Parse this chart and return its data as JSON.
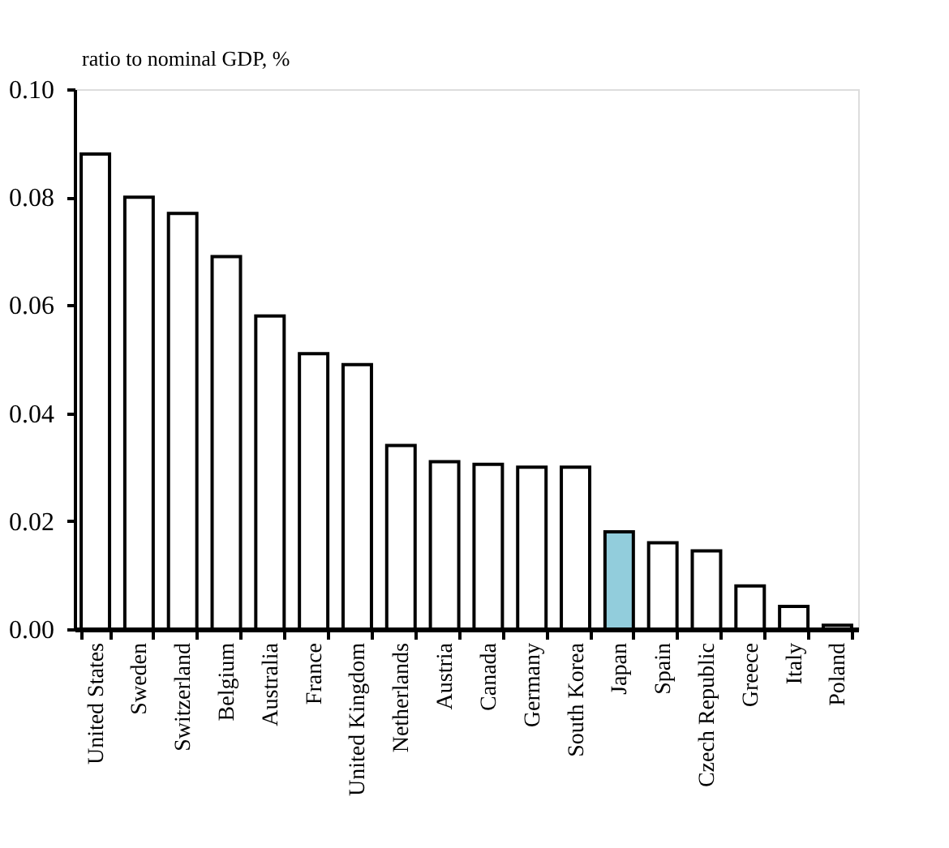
{
  "chart_data": {
    "type": "bar",
    "ylabel": "ratio to nominal GDP, %",
    "categories": [
      "United States",
      "Sweden",
      "Switzerland",
      "Belgium",
      "Australia",
      "France",
      "United Kingdom",
      "Netherlands",
      "Austria",
      "Canada",
      "Germany",
      "South Korea",
      "Japan",
      "Spain",
      "Czech Republic",
      "Greece",
      "Italy",
      "Poland"
    ],
    "values": [
      0.088,
      0.08,
      0.077,
      0.069,
      0.058,
      0.051,
      0.049,
      0.034,
      0.031,
      0.0305,
      0.03,
      0.03,
      0.018,
      0.016,
      0.0145,
      0.008,
      0.0042,
      0.0007
    ],
    "colors": [
      "#ffffff",
      "#ffffff",
      "#ffffff",
      "#ffffff",
      "#ffffff",
      "#ffffff",
      "#ffffff",
      "#ffffff",
      "#ffffff",
      "#ffffff",
      "#ffffff",
      "#ffffff",
      "#92cddc",
      "#ffffff",
      "#ffffff",
      "#ffffff",
      "#ffffff",
      "#ffffff"
    ],
    "ylim": [
      0,
      0.1
    ],
    "yticks": [
      {
        "value": 0,
        "label": "0.00"
      },
      {
        "value": 0.02,
        "label": "0.02"
      },
      {
        "value": 0.04,
        "label": "0.04"
      },
      {
        "value": 0.06,
        "label": "0.06"
      },
      {
        "value": 0.08,
        "label": "0.08"
      },
      {
        "value": 0.1,
        "label": "0.10"
      }
    ],
    "grid": false
  }
}
